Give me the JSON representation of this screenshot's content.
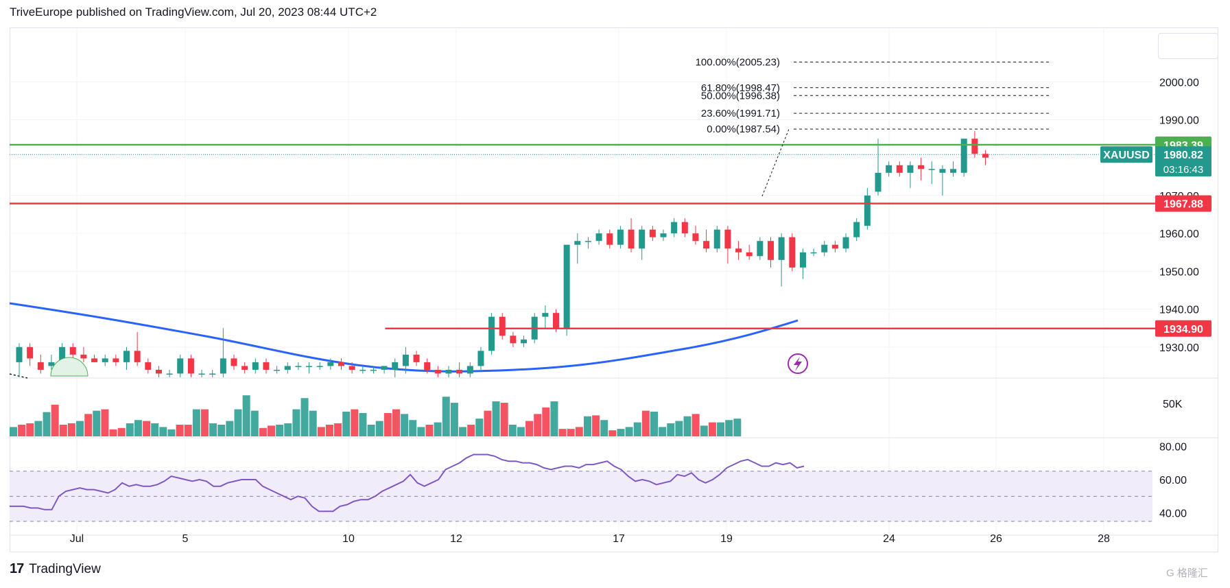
{
  "header": {
    "text": "TriveEurope published on TradingView.com, Jul 20, 2023 08:44 UTC+2"
  },
  "footer": {
    "logo": "17",
    "brand": "TradingView"
  },
  "watermark": "G 格隆汇",
  "colors": {
    "up": "#22998c",
    "down": "#f23645",
    "ma": "#2962ff",
    "rsi": "#7e57c2",
    "green_line": "#4caf50",
    "red_line": "#f23645"
  },
  "chart_data": {
    "type": "candlestick",
    "symbol": "XAUUSD",
    "x_tick_labels": [
      "Jul",
      "5",
      "10",
      "12",
      "17",
      "19",
      "24",
      "26",
      "28"
    ],
    "price_axis": {
      "ticks": [
        "1930.00",
        "1940.00",
        "1950.00",
        "1960.00",
        "1970.00",
        "1980.00",
        "1990.00",
        "2000.00"
      ],
      "range": [
        1922,
        2014
      ]
    },
    "volume_axis": {
      "ticks": [
        "50K"
      ]
    },
    "rsi_axis": {
      "ticks": [
        "40.00",
        "60.00",
        "80.00"
      ],
      "band": [
        35,
        65
      ],
      "mid": 50
    },
    "price_labels": [
      {
        "text": "1983.39",
        "value": 1983.39,
        "color": "#4caf50"
      },
      {
        "text": "1980.82",
        "value": 1980.82,
        "color": "#22998c",
        "countdown": "03:16:43",
        "symbol": "XAUUSD"
      },
      {
        "text": "1967.88",
        "value": 1967.88,
        "color": "#f23645"
      },
      {
        "text": "1934.90",
        "value": 1934.9,
        "color": "#f23645"
      }
    ],
    "horizontal_lines": [
      {
        "value": 1983.39,
        "color": "#4caf50"
      },
      {
        "value": 1967.88,
        "color": "#f23645"
      },
      {
        "value": 1934.9,
        "color": "#f23645",
        "start_index": 36
      }
    ],
    "fibonacci": [
      {
        "label": "100.00%(2005.23)",
        "value": 2005.23
      },
      {
        "label": "61.80%(1998.47)",
        "value": 1998.47
      },
      {
        "label": "50.00%(1996.38)",
        "value": 1996.38
      },
      {
        "label": "23.60%(1991.71)",
        "value": 1991.71
      },
      {
        "label": "0.00%(1987.54)",
        "value": 1987.54
      }
    ],
    "candles": [
      {
        "o": 1926,
        "h": 1931,
        "l": 1922,
        "c": 1930
      },
      {
        "o": 1930,
        "h": 1931,
        "l": 1925,
        "c": 1927
      },
      {
        "o": 1926,
        "h": 1928,
        "l": 1923,
        "c": 1924
      },
      {
        "o": 1925,
        "h": 1928,
        "l": 1924,
        "c": 1926
      },
      {
        "o": 1926,
        "h": 1931,
        "l": 1925,
        "c": 1930
      },
      {
        "o": 1930,
        "h": 1931,
        "l": 1926,
        "c": 1928
      },
      {
        "o": 1928,
        "h": 1930,
        "l": 1926,
        "c": 1927
      },
      {
        "o": 1927,
        "h": 1928,
        "l": 1926,
        "c": 1926
      },
      {
        "o": 1926,
        "h": 1928,
        "l": 1925,
        "c": 1927
      },
      {
        "o": 1927,
        "h": 1928,
        "l": 1925,
        "c": 1926
      },
      {
        "o": 1926,
        "h": 1930,
        "l": 1924,
        "c": 1929
      },
      {
        "o": 1929,
        "h": 1934,
        "l": 1925,
        "c": 1926
      },
      {
        "o": 1926,
        "h": 1927,
        "l": 1923,
        "c": 1924
      },
      {
        "o": 1924,
        "h": 1925,
        "l": 1922,
        "c": 1923
      },
      {
        "o": 1923,
        "h": 1924,
        "l": 1922,
        "c": 1923
      },
      {
        "o": 1923,
        "h": 1928,
        "l": 1922,
        "c": 1927
      },
      {
        "o": 1927,
        "h": 1928,
        "l": 1922,
        "c": 1923
      },
      {
        "o": 1923,
        "h": 1924,
        "l": 1922,
        "c": 1923
      },
      {
        "o": 1923,
        "h": 1924,
        "l": 1922,
        "c": 1923
      },
      {
        "o": 1923,
        "h": 1935,
        "l": 1922,
        "c": 1927
      },
      {
        "o": 1927,
        "h": 1928,
        "l": 1924,
        "c": 1925
      },
      {
        "o": 1925,
        "h": 1926,
        "l": 1923,
        "c": 1924
      },
      {
        "o": 1924,
        "h": 1927,
        "l": 1923,
        "c": 1926
      },
      {
        "o": 1926,
        "h": 1927,
        "l": 1923,
        "c": 1924
      },
      {
        "o": 1924,
        "h": 1925,
        "l": 1923,
        "c": 1924
      },
      {
        "o": 1924,
        "h": 1926,
        "l": 1923,
        "c": 1925
      },
      {
        "o": 1925,
        "h": 1926,
        "l": 1924,
        "c": 1925
      },
      {
        "o": 1925,
        "h": 1926,
        "l": 1923,
        "c": 1925
      },
      {
        "o": 1925,
        "h": 1926,
        "l": 1924,
        "c": 1925
      },
      {
        "o": 1925,
        "h": 1927,
        "l": 1924,
        "c": 1926
      },
      {
        "o": 1926,
        "h": 1927,
        "l": 1924,
        "c": 1925
      },
      {
        "o": 1925,
        "h": 1926,
        "l": 1923,
        "c": 1924
      },
      {
        "o": 1924,
        "h": 1925,
        "l": 1923,
        "c": 1924
      },
      {
        "o": 1924,
        "h": 1925,
        "l": 1923,
        "c": 1924
      },
      {
        "o": 1924,
        "h": 1925,
        "l": 1923,
        "c": 1925
      },
      {
        "o": 1924,
        "h": 1927,
        "l": 1922,
        "c": 1926
      },
      {
        "o": 1925,
        "h": 1930,
        "l": 1923,
        "c": 1928
      },
      {
        "o": 1928,
        "h": 1929,
        "l": 1925,
        "c": 1926
      },
      {
        "o": 1926,
        "h": 1927,
        "l": 1923,
        "c": 1924
      },
      {
        "o": 1924,
        "h": 1925,
        "l": 1922,
        "c": 1923
      },
      {
        "o": 1923,
        "h": 1925,
        "l": 1922,
        "c": 1924
      },
      {
        "o": 1924,
        "h": 1926,
        "l": 1922,
        "c": 1923
      },
      {
        "o": 1923,
        "h": 1926,
        "l": 1922,
        "c": 1925
      },
      {
        "o": 1925,
        "h": 1930,
        "l": 1924,
        "c": 1929
      },
      {
        "o": 1929,
        "h": 1939,
        "l": 1928,
        "c": 1938
      },
      {
        "o": 1938,
        "h": 1939,
        "l": 1932,
        "c": 1933
      },
      {
        "o": 1933,
        "h": 1934,
        "l": 1930,
        "c": 1931
      },
      {
        "o": 1931,
        "h": 1933,
        "l": 1930,
        "c": 1932
      },
      {
        "o": 1932,
        "h": 1939,
        "l": 1931,
        "c": 1938
      },
      {
        "o": 1938,
        "h": 1941,
        "l": 1935,
        "c": 1939
      },
      {
        "o": 1939,
        "h": 1940,
        "l": 1934,
        "c": 1935
      },
      {
        "o": 1935,
        "h": 1957,
        "l": 1933,
        "c": 1957
      },
      {
        "o": 1957,
        "h": 1960,
        "l": 1952,
        "c": 1958
      },
      {
        "o": 1958,
        "h": 1959,
        "l": 1956,
        "c": 1958
      },
      {
        "o": 1958,
        "h": 1961,
        "l": 1957,
        "c": 1960
      },
      {
        "o": 1960,
        "h": 1961,
        "l": 1956,
        "c": 1957
      },
      {
        "o": 1957,
        "h": 1962,
        "l": 1956,
        "c": 1961
      },
      {
        "o": 1961,
        "h": 1964,
        "l": 1955,
        "c": 1956
      },
      {
        "o": 1956,
        "h": 1962,
        "l": 1953,
        "c": 1961
      },
      {
        "o": 1961,
        "h": 1962,
        "l": 1958,
        "c": 1959
      },
      {
        "o": 1959,
        "h": 1961,
        "l": 1958,
        "c": 1960
      },
      {
        "o": 1960,
        "h": 1964,
        "l": 1959,
        "c": 1963
      },
      {
        "o": 1963,
        "h": 1964,
        "l": 1959,
        "c": 1960
      },
      {
        "o": 1960,
        "h": 1962,
        "l": 1957,
        "c": 1958
      },
      {
        "o": 1958,
        "h": 1961,
        "l": 1955,
        "c": 1956
      },
      {
        "o": 1956,
        "h": 1962,
        "l": 1955,
        "c": 1961
      },
      {
        "o": 1961,
        "h": 1962,
        "l": 1952,
        "c": 1956
      },
      {
        "o": 1956,
        "h": 1958,
        "l": 1953,
        "c": 1955
      },
      {
        "o": 1955,
        "h": 1957,
        "l": 1953,
        "c": 1954
      },
      {
        "o": 1954,
        "h": 1959,
        "l": 1953,
        "c": 1958
      },
      {
        "o": 1958,
        "h": 1959,
        "l": 1951,
        "c": 1953
      },
      {
        "o": 1953,
        "h": 1960,
        "l": 1946,
        "c": 1959
      },
      {
        "o": 1959,
        "h": 1960,
        "l": 1950,
        "c": 1951
      },
      {
        "o": 1951,
        "h": 1956,
        "l": 1948,
        "c": 1955
      },
      {
        "o": 1955,
        "h": 1956,
        "l": 1954,
        "c": 1955
      },
      {
        "o": 1955,
        "h": 1958,
        "l": 1954,
        "c": 1957
      },
      {
        "o": 1957,
        "h": 1958,
        "l": 1955,
        "c": 1956
      },
      {
        "o": 1956,
        "h": 1960,
        "l": 1955,
        "c": 1959
      },
      {
        "o": 1959,
        "h": 1964,
        "l": 1958,
        "c": 1963
      },
      {
        "o": 1962,
        "h": 1972,
        "l": 1961,
        "c": 1970
      },
      {
        "o": 1971,
        "h": 1985,
        "l": 1970,
        "c": 1976
      },
      {
        "o": 1976,
        "h": 1979,
        "l": 1975,
        "c": 1978
      },
      {
        "o": 1978,
        "h": 1979,
        "l": 1975,
        "c": 1976
      },
      {
        "o": 1976,
        "h": 1979,
        "l": 1972,
        "c": 1978
      },
      {
        "o": 1978,
        "h": 1980,
        "l": 1974,
        "c": 1977
      },
      {
        "o": 1977,
        "h": 1979,
        "l": 1973,
        "c": 1977
      },
      {
        "o": 1976,
        "h": 1978,
        "l": 1970,
        "c": 1977
      },
      {
        "o": 1976,
        "h": 1979,
        "l": 1975,
        "c": 1977
      },
      {
        "o": 1976,
        "h": 1985,
        "l": 1975,
        "c": 1985
      },
      {
        "o": 1985,
        "h": 1987,
        "l": 1980,
        "c": 1981
      },
      {
        "o": 1981,
        "h": 1982,
        "l": 1978,
        "c": 1980
      }
    ],
    "volume_ratio": [
      0.2,
      0.25,
      0.28,
      0.33,
      0.52,
      0.68,
      0.25,
      0.28,
      0.33,
      0.48,
      0.55,
      0.58,
      0.15,
      0.18,
      0.28,
      0.35,
      0.33,
      0.28,
      0.2,
      0.15,
      0.25,
      0.25,
      0.58,
      0.58,
      0.28,
      0.25,
      0.33,
      0.58,
      0.88,
      0.55,
      0.18,
      0.23,
      0.25,
      0.28,
      0.58,
      0.82,
      0.55,
      0.2,
      0.25,
      0.28,
      0.53,
      0.58,
      0.5,
      0.25,
      0.33,
      0.5,
      0.58,
      0.48,
      0.35,
      0.2,
      0.25,
      0.3,
      0.85,
      0.72,
      0.2,
      0.25,
      0.38,
      0.55,
      0.75,
      0.72,
      0.25,
      0.2,
      0.33,
      0.48,
      0.62,
      0.75,
      0.16,
      0.16,
      0.2,
      0.43,
      0.45,
      0.35,
      0.13,
      0.16,
      0.2,
      0.3,
      0.55,
      0.53,
      0.2,
      0.28,
      0.33,
      0.43,
      0.48,
      0.23,
      0.3,
      0.3,
      0.35,
      0.38
    ],
    "rsi_values": [
      44,
      44,
      44,
      43,
      43,
      42,
      42,
      50,
      53,
      54,
      55,
      54,
      54,
      53,
      52,
      54,
      58,
      56,
      57,
      56,
      56,
      57,
      59,
      62,
      61,
      60,
      59,
      60,
      59,
      56,
      56,
      58,
      59,
      60,
      60,
      60,
      56,
      54,
      52,
      50,
      48,
      50,
      49,
      44,
      41,
      41,
      41,
      44,
      45,
      47,
      48,
      48,
      50,
      53,
      55,
      57,
      59,
      63,
      58,
      56,
      58,
      60,
      66,
      68,
      70,
      73,
      75,
      75,
      75,
      74,
      72,
      71,
      71,
      70,
      70,
      69,
      67,
      66,
      67,
      68,
      68,
      67,
      69,
      69,
      70,
      71,
      68,
      66,
      62,
      59,
      60,
      59,
      57,
      58,
      59,
      63,
      62,
      64,
      60,
      58,
      60,
      63,
      67,
      69,
      71,
      72,
      70,
      68,
      68,
      70,
      69,
      70,
      67,
      68
    ]
  }
}
